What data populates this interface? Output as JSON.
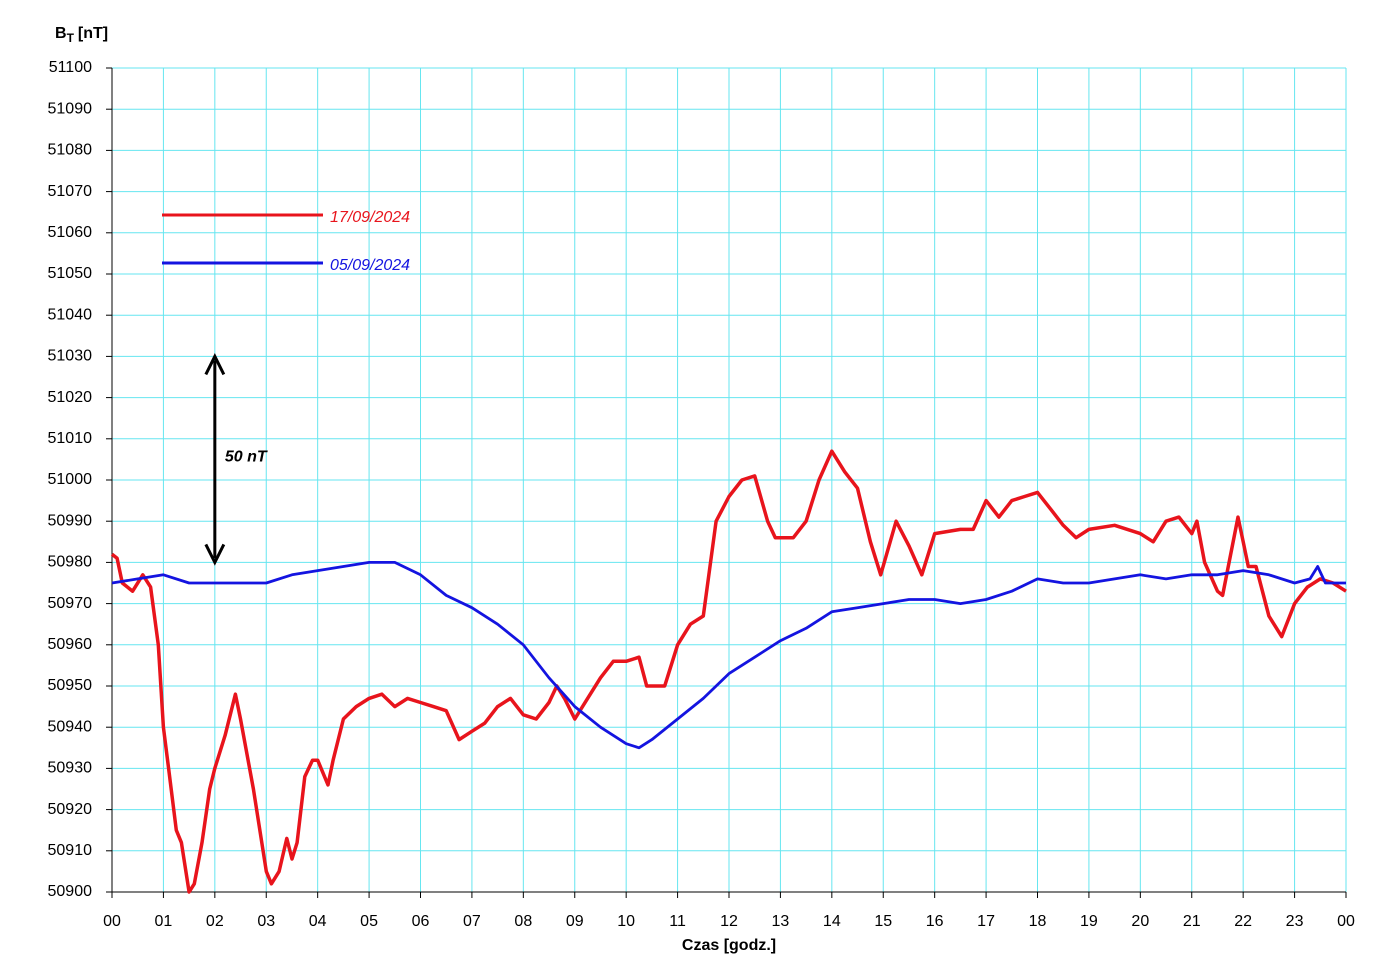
{
  "chart_data": {
    "type": "line",
    "y_label": {
      "main": "B",
      "sub": "T",
      "unit": "[nT]"
    },
    "x_label": "Czas [godz.]",
    "annotation": {
      "text": "50 nT",
      "x": 2,
      "y_from": 51030,
      "y_to": 50980
    },
    "legend": "upper left",
    "grid": true,
    "xlim": [
      0,
      24
    ],
    "ylim": [
      50900,
      51100
    ],
    "yticks": [
      50900,
      50910,
      50920,
      50930,
      50940,
      50950,
      50960,
      50970,
      50980,
      50990,
      51000,
      51010,
      51020,
      51030,
      51040,
      51050,
      51060,
      51070,
      51080,
      51090,
      51100
    ],
    "xticks": [
      {
        "value": 0,
        "label": "00"
      },
      {
        "value": 1,
        "label": "01"
      },
      {
        "value": 2,
        "label": "02"
      },
      {
        "value": 3,
        "label": "03"
      },
      {
        "value": 4,
        "label": "04"
      },
      {
        "value": 5,
        "label": "05"
      },
      {
        "value": 6,
        "label": "06"
      },
      {
        "value": 7,
        "label": "07"
      },
      {
        "value": 8,
        "label": "08"
      },
      {
        "value": 9,
        "label": "09"
      },
      {
        "value": 10,
        "label": "10"
      },
      {
        "value": 11,
        "label": "11"
      },
      {
        "value": 12,
        "label": "12"
      },
      {
        "value": 13,
        "label": "13"
      },
      {
        "value": 14,
        "label": "14"
      },
      {
        "value": 15,
        "label": "15"
      },
      {
        "value": 16,
        "label": "16"
      },
      {
        "value": 17,
        "label": "17"
      },
      {
        "value": 18,
        "label": "18"
      },
      {
        "value": 19,
        "label": "19"
      },
      {
        "value": 20,
        "label": "20"
      },
      {
        "value": 21,
        "label": "21"
      },
      {
        "value": 22,
        "label": "22"
      },
      {
        "value": 23,
        "label": "23"
      },
      {
        "value": 24,
        "label": "00"
      }
    ],
    "series": [
      {
        "name": "17/09/2024",
        "color": "#e8141c",
        "x": [
          0,
          0.1,
          0.2,
          0.4,
          0.6,
          0.75,
          0.9,
          1.0,
          1.1,
          1.25,
          1.35,
          1.5,
          1.6,
          1.75,
          1.9,
          2.0,
          2.2,
          2.4,
          2.5,
          2.75,
          3.0,
          3.1,
          3.25,
          3.4,
          3.5,
          3.6,
          3.75,
          3.9,
          4.0,
          4.2,
          4.3,
          4.5,
          4.75,
          5.0,
          5.25,
          5.5,
          5.75,
          6.0,
          6.25,
          6.5,
          6.75,
          7.0,
          7.25,
          7.5,
          7.75,
          8.0,
          8.25,
          8.5,
          8.65,
          8.8,
          9.0,
          9.25,
          9.5,
          9.75,
          10.0,
          10.25,
          10.4,
          10.75,
          11.0,
          11.25,
          11.5,
          11.75,
          12.0,
          12.25,
          12.5,
          12.75,
          12.9,
          13.25,
          13.5,
          13.75,
          14.0,
          14.25,
          14.5,
          14.75,
          14.95,
          15.25,
          15.5,
          15.75,
          16.0,
          16.5,
          16.75,
          17.0,
          17.25,
          17.5,
          17.75,
          18.0,
          18.25,
          18.5,
          18.75,
          19.0,
          19.5,
          20.0,
          20.25,
          20.5,
          20.75,
          21.0,
          21.1,
          21.25,
          21.5,
          21.6,
          21.9,
          22.0,
          22.1,
          22.25,
          22.5,
          22.75,
          23.0,
          23.25,
          23.5,
          23.75,
          24.0
        ],
        "values": [
          50982,
          50981,
          50975,
          50973,
          50977,
          50974,
          50960,
          50940,
          50930,
          50915,
          50912,
          50900,
          50902,
          50912,
          50925,
          50930,
          50938,
          50948,
          50942,
          50925,
          50905,
          50902,
          50905,
          50913,
          50908,
          50912,
          50928,
          50932,
          50932,
          50926,
          50932,
          50942,
          50945,
          50947,
          50948,
          50945,
          50947,
          50946,
          50945,
          50944,
          50937,
          50939,
          50941,
          50945,
          50947,
          50943,
          50942,
          50946,
          50950,
          50947,
          50942,
          50947,
          50952,
          50956,
          50956,
          50957,
          50950,
          50950,
          50960,
          50965,
          50967,
          50990,
          50996,
          51000,
          51001,
          50990,
          50986,
          50986,
          50990,
          51000,
          51007,
          51002,
          50998,
          50985,
          50977,
          50990,
          50984,
          50977,
          50987,
          50988,
          50988,
          50995,
          50991,
          50995,
          50996,
          50997,
          50993,
          50989,
          50986,
          50988,
          50989,
          50987,
          50985,
          50990,
          50991,
          50987,
          50990,
          50980,
          50973,
          50972,
          50991,
          50985,
          50979,
          50979,
          50967,
          50962,
          50970,
          50974,
          50976,
          50975,
          50973
        ]
      },
      {
        "name": "05/09/2024",
        "color": "#1414e0",
        "x": [
          0,
          0.5,
          1,
          1.5,
          2,
          2.5,
          3,
          3.5,
          4,
          4.5,
          5,
          5.5,
          6,
          6.5,
          7,
          7.5,
          8,
          8.5,
          9,
          9.5,
          10,
          10.25,
          10.5,
          11,
          11.5,
          12,
          12.5,
          13,
          13.5,
          14,
          14.5,
          15,
          15.5,
          16,
          16.5,
          17,
          17.5,
          18,
          18.5,
          19,
          19.5,
          20,
          20.5,
          21,
          21.5,
          22,
          22.5,
          23,
          23.3,
          23.45,
          23.6,
          24
        ],
        "values": [
          50975,
          50976,
          50977,
          50975,
          50975,
          50975,
          50975,
          50977,
          50978,
          50979,
          50980,
          50980,
          50977,
          50972,
          50969,
          50965,
          50960,
          50952,
          50945,
          50940,
          50936,
          50935,
          50937,
          50942,
          50947,
          50953,
          50957,
          50961,
          50964,
          50968,
          50969,
          50970,
          50971,
          50971,
          50970,
          50971,
          50973,
          50976,
          50975,
          50975,
          50976,
          50977,
          50976,
          50977,
          50977,
          50978,
          50977,
          50975,
          50976,
          50979,
          50975,
          50975
        ]
      }
    ]
  }
}
